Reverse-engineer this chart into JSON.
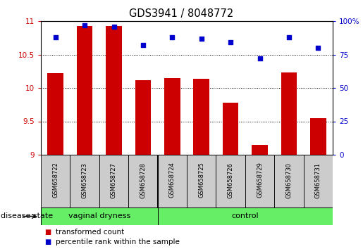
{
  "title": "GDS3941 / 8048772",
  "samples": [
    "GSM658722",
    "GSM658723",
    "GSM658727",
    "GSM658728",
    "GSM658724",
    "GSM658725",
    "GSM658726",
    "GSM658729",
    "GSM658730",
    "GSM658731"
  ],
  "red_values": [
    10.22,
    10.93,
    10.93,
    10.12,
    10.15,
    10.14,
    9.78,
    9.15,
    10.23,
    9.55
  ],
  "blue_values": [
    88,
    97,
    96,
    82,
    88,
    87,
    84,
    72,
    88,
    80
  ],
  "ymin": 9.0,
  "ymax": 11.0,
  "yticks_left": [
    9.0,
    9.5,
    10.0,
    10.5,
    11.0
  ],
  "ytick_labels_left": [
    "9",
    "9.5",
    "10",
    "10.5",
    "11"
  ],
  "yticks_right": [
    0,
    25,
    50,
    75,
    100
  ],
  "ytick_labels_right": [
    "0",
    "25",
    "50",
    "75",
    "100%"
  ],
  "group_divider": 4,
  "group1_label": "vaginal dryness",
  "group2_label": "control",
  "group_color": "#66EE66",
  "sample_box_color": "#CCCCCC",
  "legend_red_label": "transformed count",
  "legend_blue_label": "percentile rank within the sample",
  "bar_color": "#CC0000",
  "dot_color": "#0000CC",
  "left_axis_color": "#CC0000",
  "right_axis_color": "#0000CC",
  "disease_state_label": "disease state",
  "grid_lines": [
    9.5,
    10.0,
    10.5
  ]
}
